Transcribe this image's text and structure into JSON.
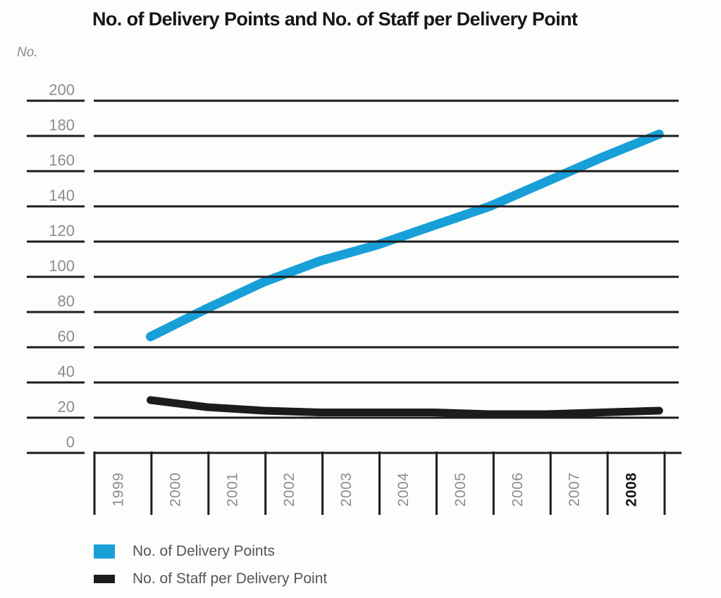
{
  "title": "No. of Delivery Points and No. of Staff per Delivery Point",
  "y_axis_unit_label": "No.",
  "colors": {
    "delivery_points_blue": "#189fd8",
    "staff_line_black": "#1c1c1c",
    "grid": "#1c1c1c",
    "axis_text_gray": "#8c8c8c",
    "highlight_text": "#141414"
  },
  "legend": {
    "items": [
      {
        "label": "No. of Delivery Points",
        "color": "#189fd8",
        "swatch_shape": "square"
      },
      {
        "label": "No. of Staff per Delivery Point",
        "color": "#1c1c1c",
        "swatch_shape": "dash"
      }
    ]
  },
  "chart_data": {
    "type": "line",
    "title": "No. of Delivery Points and No. of Staff per Delivery Point",
    "x": [
      "1999",
      "2000",
      "2001",
      "2002",
      "2003",
      "2004",
      "2005",
      "2006",
      "2007",
      "2008"
    ],
    "x_highlighted": "2008",
    "series": [
      {
        "name": "No. of Delivery Points",
        "color": "#189fd8",
        "values": [
          66,
          82,
          97,
          109,
          118,
          129,
          140,
          154,
          168,
          181
        ]
      },
      {
        "name": "No. of Staff per Delivery Point",
        "color": "#1c1c1c",
        "values": [
          30,
          26,
          24,
          23,
          23,
          23,
          22,
          22,
          23,
          24
        ]
      }
    ],
    "ylabel": "No.",
    "ylim": [
      0,
      200
    ],
    "yticks": [
      0,
      20,
      40,
      60,
      80,
      100,
      120,
      140,
      160,
      180,
      200
    ],
    "grid": true,
    "legend_position": "bottom-left"
  }
}
